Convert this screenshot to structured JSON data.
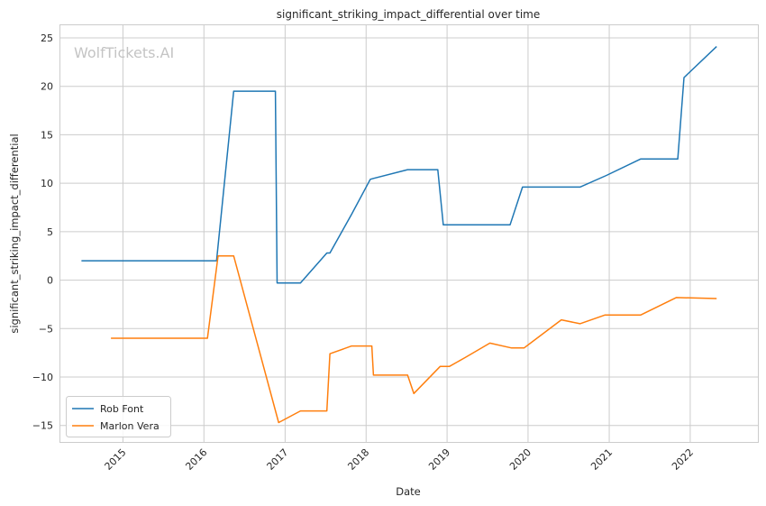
{
  "chart_data": {
    "type": "line",
    "title": "significant_striking_impact_differential over time",
    "xlabel": "Date",
    "ylabel": "significant_striking_impact_differential",
    "watermark": "WolfTickets.AI",
    "x_tick_labels": [
      "2015",
      "2016",
      "2017",
      "2018",
      "2019",
      "2020",
      "2021",
      "2022"
    ],
    "y_ticks": [
      -15,
      -10,
      -5,
      0,
      5,
      10,
      15,
      20,
      25
    ],
    "y_tick_labels": [
      "−15",
      "−10",
      "−5",
      "0",
      "5",
      "10",
      "15",
      "20",
      "25"
    ],
    "xlim": [
      "2014-03-25",
      "2022-11-02"
    ],
    "ylim": [
      -16.7,
      26.3
    ],
    "grid": true,
    "legend_position": "lower-left",
    "colors": {
      "Rob Font": "#1f77b4",
      "Marlon Vera": "#ff7f0e"
    },
    "series": [
      {
        "name": "Rob Font",
        "x": [
          "2014-06-28",
          "2016-02-27",
          "2016-05-14",
          "2016-11-18",
          "2016-11-26",
          "2017-03-11",
          "2017-07-08",
          "2017-07-22",
          "2017-10-28",
          "2018-01-20",
          "2018-02-03",
          "2018-07-07",
          "2018-11-20",
          "2018-12-15",
          "2019-10-12",
          "2019-12-07",
          "2020-08-22",
          "2020-12-19",
          "2021-05-22",
          "2021-11-06",
          "2021-12-04",
          "2022-04-30"
        ],
        "y": [
          2.0,
          2.0,
          19.5,
          19.5,
          -0.3,
          -0.3,
          2.8,
          2.8,
          6.8,
          10.4,
          10.5,
          11.4,
          11.4,
          5.7,
          5.7,
          9.6,
          9.6,
          10.8,
          12.5,
          12.5,
          20.9,
          24.1
        ]
      },
      {
        "name": "Marlon Vera",
        "x": [
          "2014-11-08",
          "2016-01-17",
          "2016-03-05",
          "2016-05-14",
          "2016-12-03",
          "2017-03-11",
          "2017-07-08",
          "2017-07-22",
          "2017-10-28",
          "2018-01-27",
          "2018-02-03",
          "2018-07-07",
          "2018-08-04",
          "2018-12-01",
          "2019-01-12",
          "2019-03-23",
          "2019-07-13",
          "2019-10-19",
          "2019-12-14",
          "2020-05-30",
          "2020-08-22",
          "2020-12-12",
          "2021-05-22",
          "2021-10-30",
          "2022-04-30"
        ],
        "y": [
          -6.0,
          -6.0,
          2.5,
          2.5,
          -14.7,
          -13.5,
          -13.5,
          -7.6,
          -6.8,
          -6.8,
          -9.8,
          -9.8,
          -11.7,
          -8.9,
          -8.9,
          -8.0,
          -6.5,
          -7.0,
          -7.0,
          -4.1,
          -4.5,
          -3.6,
          -3.6,
          -1.8,
          -1.9
        ]
      }
    ]
  }
}
